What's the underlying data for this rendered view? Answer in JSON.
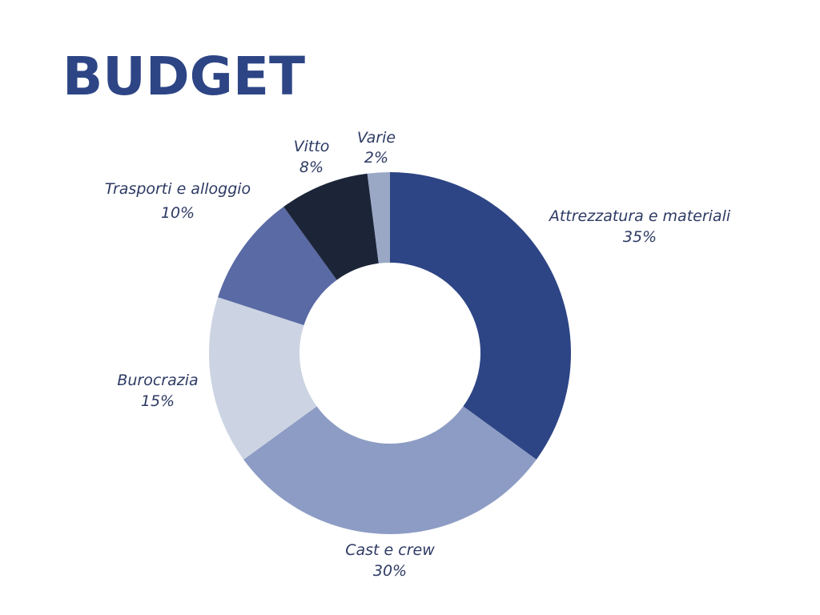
{
  "title": "BUDGET",
  "colors": {
    "title": "#2d4585",
    "label": "#2d3a63"
  },
  "chart_data": {
    "type": "pie",
    "donut": true,
    "start": "12 o'clock",
    "direction": "clockwise",
    "categories": [
      "Attrezzatura e materiali",
      "Cast e crew",
      "Burocrazia",
      "Trasporti e alloggio",
      "Vitto",
      "Varie"
    ],
    "values": [
      35,
      30,
      15,
      10,
      8,
      2
    ],
    "value_labels": [
      "35%",
      "30%",
      "15%",
      "10%",
      "8%",
      "2%"
    ],
    "colors": [
      "#2d4585",
      "#8d9cc4",
      "#ccd4e3",
      "#5a6aa5",
      "#1c2538",
      "#9aa8c6"
    ]
  }
}
